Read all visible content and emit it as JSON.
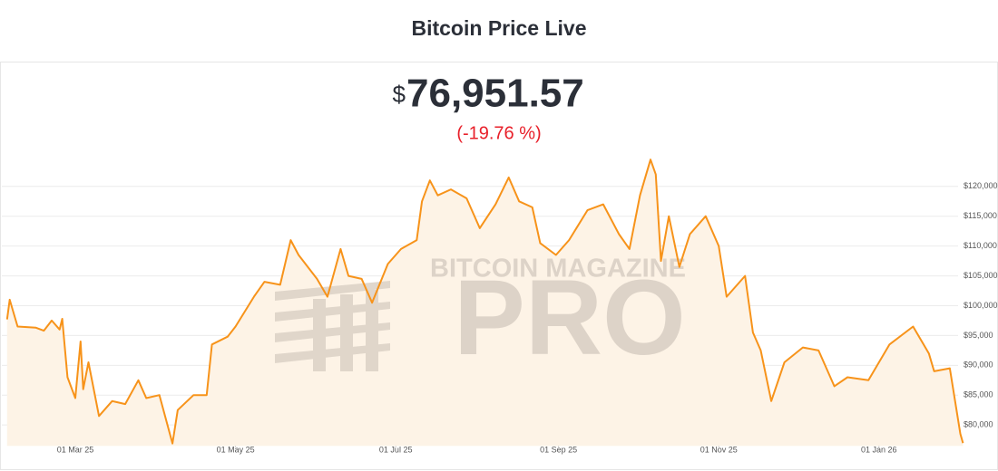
{
  "chart_data": {
    "type": "area",
    "title": "Bitcoin Price Live",
    "currency": "$",
    "price": "76,951.57",
    "change": "(-19.76 %)",
    "watermark": [
      "BITCOIN MAGAZINE",
      "PRO"
    ],
    "color": "#f7931a",
    "fill": "#fdf3e6",
    "grid": true,
    "x": [
      "2025-02-03",
      "2025-02-04",
      "2025-02-07",
      "2025-02-14",
      "2025-02-17",
      "2025-02-20",
      "2025-02-23",
      "2025-02-24",
      "2025-02-26",
      "2025-03-01",
      "2025-03-03",
      "2025-03-04",
      "2025-03-06",
      "2025-03-10",
      "2025-03-15",
      "2025-03-20",
      "2025-03-25",
      "2025-03-28",
      "2025-04-02",
      "2025-04-07",
      "2025-04-09",
      "2025-04-15",
      "2025-04-20",
      "2025-04-22",
      "2025-04-28",
      "2025-05-01",
      "2025-05-08",
      "2025-05-12",
      "2025-05-18",
      "2025-05-22",
      "2025-05-25",
      "2025-06-01",
      "2025-06-05",
      "2025-06-10",
      "2025-06-13",
      "2025-06-18",
      "2025-06-22",
      "2025-06-28",
      "2025-07-03",
      "2025-07-09",
      "2025-07-11",
      "2025-07-14",
      "2025-07-17",
      "2025-07-22",
      "2025-07-28",
      "2025-08-02",
      "2025-08-08",
      "2025-08-13",
      "2025-08-17",
      "2025-08-22",
      "2025-08-25",
      "2025-08-31",
      "2025-09-05",
      "2025-09-12",
      "2025-09-18",
      "2025-09-24",
      "2025-09-28",
      "2025-10-02",
      "2025-10-06",
      "2025-10-08",
      "2025-10-10",
      "2025-10-13",
      "2025-10-17",
      "2025-10-21",
      "2025-10-27",
      "2025-11-01",
      "2025-11-04",
      "2025-11-11",
      "2025-11-14",
      "2025-11-17",
      "2025-11-21",
      "2025-11-26",
      "2025-12-03",
      "2025-12-09",
      "2025-12-15",
      "2025-12-20",
      "2025-12-28",
      "2026-01-05",
      "2026-01-14",
      "2026-01-20",
      "2026-01-22",
      "2026-01-28",
      "2026-01-30",
      "2026-02-01",
      "2026-02-02"
    ],
    "values": [
      97700,
      101000,
      96500,
      96300,
      95800,
      97500,
      96000,
      97800,
      88000,
      84500,
      94000,
      86000,
      90500,
      81500,
      84000,
      83500,
      87500,
      84500,
      85000,
      76900,
      82500,
      85000,
      85000,
      93500,
      94800,
      96500,
      101500,
      104000,
      103500,
      111000,
      108500,
      104500,
      101500,
      109500,
      105000,
      104500,
      100500,
      107000,
      109500,
      111000,
      117500,
      121000,
      118500,
      119500,
      118000,
      113000,
      117000,
      121500,
      117500,
      116500,
      110500,
      108500,
      111000,
      116000,
      117000,
      112000,
      109500,
      118500,
      124500,
      122000,
      107500,
      115000,
      106500,
      112000,
      115000,
      110000,
      101500,
      105000,
      95500,
      92500,
      84000,
      90500,
      93000,
      92500,
      86500,
      88000,
      87500,
      93500,
      96500,
      92000,
      89000,
      89500,
      84000,
      78500,
      76951.57
    ],
    "xlim": [
      "2025-02-01",
      "2026-02-06"
    ],
    "xticks": [
      {
        "value": "2025-03-01",
        "label": "01 Mar 25"
      },
      {
        "value": "2025-05-01",
        "label": "01 May 25"
      },
      {
        "value": "2025-07-01",
        "label": "01 Jul 25"
      },
      {
        "value": "2025-09-01",
        "label": "01 Sep 25"
      },
      {
        "value": "2025-11-01",
        "label": "01 Nov 25"
      },
      {
        "value": "2026-01-01",
        "label": "01 Jan 26"
      }
    ],
    "ylim": [
      76500,
      125500
    ],
    "yticks": [
      {
        "value": 80000,
        "label": "$80,000"
      },
      {
        "value": 85000,
        "label": "$85,000"
      },
      {
        "value": 90000,
        "label": "$90,000"
      },
      {
        "value": 95000,
        "label": "$95,000"
      },
      {
        "value": 100000,
        "label": "$100,000"
      },
      {
        "value": 105000,
        "label": "$105,000"
      },
      {
        "value": 110000,
        "label": "$110,000"
      },
      {
        "value": 115000,
        "label": "$115,000"
      },
      {
        "value": 120000,
        "label": "$120,000"
      }
    ]
  }
}
